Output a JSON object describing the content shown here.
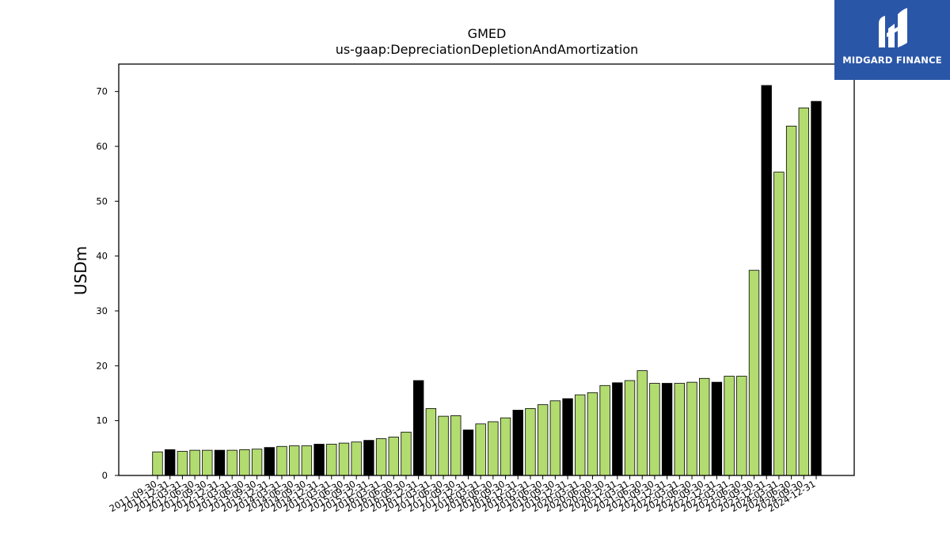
{
  "logo": {
    "text": "MIDGARD FINANCE",
    "icon": "midgard-logo-icon",
    "background": "#2a56a8"
  },
  "chart_data": {
    "type": "bar",
    "title": "GMED",
    "subtitle": "us-gaap:DepreciationDepletionAndAmortization",
    "xlabel": "",
    "ylabel": "USDm",
    "ylim": [
      0,
      75
    ],
    "yticks": [
      0,
      10,
      20,
      30,
      40,
      50,
      60,
      70
    ],
    "grid": false,
    "colors": {
      "quarter": "#b2dc6f",
      "year_end": "#000000",
      "edge": "#000000"
    },
    "categories": [
      "2011-09-30",
      "2011-12-31",
      "2012-03-31",
      "2012-06-30",
      "2012-09-30",
      "2012-12-31",
      "2013-03-31",
      "2013-06-30",
      "2013-09-30",
      "2013-12-31",
      "2014-03-31",
      "2014-06-30",
      "2014-09-30",
      "2014-12-31",
      "2015-03-31",
      "2015-06-30",
      "2015-09-30",
      "2015-12-31",
      "2016-03-31",
      "2016-06-30",
      "2016-09-30",
      "2016-12-31",
      "2017-03-31",
      "2017-06-30",
      "2017-09-30",
      "2017-12-31",
      "2018-03-31",
      "2018-06-30",
      "2018-09-30",
      "2018-12-31",
      "2019-03-31",
      "2019-06-30",
      "2019-09-30",
      "2019-12-31",
      "2020-03-31",
      "2020-06-30",
      "2020-09-30",
      "2020-12-31",
      "2021-03-31",
      "2021-06-30",
      "2021-09-30",
      "2021-12-31",
      "2022-03-31",
      "2022-06-30",
      "2022-09-30",
      "2022-12-31",
      "2023-03-31",
      "2023-06-30",
      "2023-09-30",
      "2023-12-31",
      "2024-03-31",
      "2024-06-30",
      "2024-09-30",
      "2024-12-31"
    ],
    "values": [
      4.3,
      4.7,
      4.4,
      4.6,
      4.6,
      4.6,
      4.6,
      4.7,
      4.8,
      5.1,
      5.3,
      5.4,
      5.4,
      5.7,
      5.7,
      5.9,
      6.1,
      6.4,
      6.7,
      7.0,
      7.9,
      17.3,
      12.2,
      10.8,
      10.9,
      8.3,
      9.4,
      9.8,
      10.5,
      11.9,
      12.2,
      12.9,
      13.6,
      14.0,
      14.7,
      15.1,
      16.4,
      16.9,
      17.3,
      19.1,
      16.8,
      16.8,
      16.8,
      17.0,
      17.7,
      17.0,
      18.1,
      18.1,
      37.4,
      71.1,
      55.3,
      63.7,
      67.0,
      68.2
    ],
    "year_end": [
      false,
      true,
      false,
      false,
      false,
      true,
      false,
      false,
      false,
      true,
      false,
      false,
      false,
      true,
      false,
      false,
      false,
      true,
      false,
      false,
      false,
      true,
      false,
      false,
      false,
      true,
      false,
      false,
      false,
      true,
      false,
      false,
      false,
      true,
      false,
      false,
      false,
      true,
      false,
      false,
      false,
      true,
      false,
      false,
      false,
      true,
      false,
      false,
      false,
      true,
      false,
      false,
      false,
      true
    ]
  }
}
